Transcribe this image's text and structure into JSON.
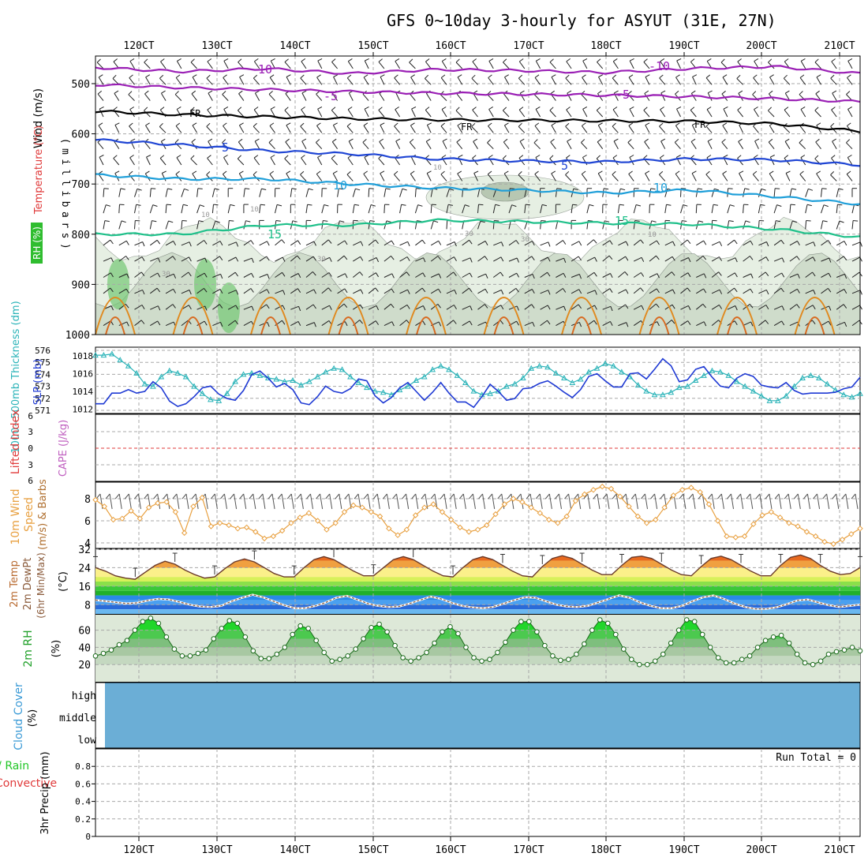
{
  "chart_data": [
    {
      "type": "meteogram-sounding",
      "title": "GFS 0~10day 3-hourly for ASYUT (31E, 27N)",
      "time_ticks": [
        "120CT",
        "130CT",
        "140CT",
        "150CT",
        "160CT",
        "170CT",
        "180CT",
        "190CT",
        "200CT",
        "210CT"
      ],
      "pressure_ticks": [
        500,
        600,
        700,
        800,
        900,
        1000
      ],
      "pressure_unit": "(millibars)",
      "ylabels": {
        "wind": "Wind (m/s)",
        "temperature": "Temperature (°C)",
        "rh": "RH (%)"
      },
      "contour_labels": {
        "m10a": "-10",
        "m10b": "-10",
        "m5a": "-5",
        "m5b": "-5",
        "fra": "FR",
        "frb": "FR",
        "frc": "FR",
        "p5a": "5",
        "p5b": "5",
        "p10a": "10",
        "p10b": "10",
        "p15a": "15",
        "p15b": "15",
        "rh10a": "10",
        "rh10b": "10",
        "rh10c": "10",
        "rh10d": "10",
        "rh30a": "30",
        "rh30b": "30",
        "rh30c": "30",
        "rh30d": "30"
      },
      "isotherm_levels": [
        {
          "label": "-10",
          "p": [
            468,
            476,
            470,
            480,
            472,
            474,
            478,
            470,
            466,
            480
          ]
        },
        {
          "label": "-5",
          "p": [
            502,
            508,
            512,
            516,
            519,
            521,
            523,
            526,
            530,
            536
          ]
        },
        {
          "label": "FR",
          "p": [
            555,
            562,
            566,
            570,
            572,
            573,
            574,
            575,
            580,
            595
          ]
        },
        {
          "label": "5",
          "p": [
            612,
            622,
            634,
            640,
            650,
            654,
            656,
            650,
            652,
            662
          ]
        },
        {
          "label": "10",
          "p": [
            682,
            690,
            690,
            700,
            708,
            712,
            718,
            712,
            725,
            740
          ]
        },
        {
          "label": "15",
          "p": [
            800,
            800,
            782,
            782,
            772,
            775,
            778,
            780,
            790,
            806
          ]
        }
      ]
    },
    {
      "type": "line",
      "ylabels": {
        "thickness": "1000~500mb Thickness (dm)",
        "slp": "SLP (mb)"
      },
      "thickness_ylim": [
        571,
        576
      ],
      "thickness_ticks": [
        576,
        575,
        574,
        573,
        572,
        571
      ],
      "slp_ylim": [
        1011.5,
        1019
      ],
      "slp_ticks": [
        1018,
        1016,
        1014,
        1012
      ],
      "series": [
        {
          "name": "Thickness",
          "unit": "dm",
          "values": [
            575.6,
            575.6,
            575.7,
            575.2,
            574.7,
            574.1,
            573.2,
            573.0,
            573.8,
            574.3,
            574.1,
            573.8,
            573.0,
            572.4,
            571.9,
            571.8,
            572.4,
            573.4,
            574.0,
            574.1,
            573.9,
            573.7,
            573.6,
            573.4,
            573.5,
            573.1,
            573.4,
            573.8,
            574.2,
            574.5,
            574.4,
            573.8,
            573.3,
            572.9,
            572.6,
            572.5,
            572.3,
            572.7,
            573.0,
            573.5,
            573.8,
            574.4,
            574.7,
            574.4,
            573.9,
            573.3,
            572.6,
            572.3,
            572.4,
            572.6,
            573.0,
            573.2,
            573.7,
            574.5,
            574.7,
            574.6,
            574.1,
            573.7,
            573.3,
            573.6,
            574.2,
            574.5,
            574.9,
            574.7,
            574.2,
            573.8,
            573.1,
            572.6,
            572.3,
            572.3,
            572.5,
            572.9,
            573.0,
            573.5,
            573.9,
            574.3,
            574.2,
            573.9,
            573.4,
            573.0,
            572.6,
            572.2,
            571.8,
            571.8,
            572.2,
            573.0,
            573.7,
            573.9,
            573.7,
            573.2,
            572.7,
            572.3,
            572.1,
            572.4
          ]
        },
        {
          "name": "SLP",
          "unit": "mb",
          "values": [
            1012.6,
            1012.6,
            1013.8,
            1013.8,
            1014.2,
            1013.8,
            1014.0,
            1015.1,
            1014.4,
            1012.9,
            1012.3,
            1012.6,
            1013.4,
            1014.4,
            1014.6,
            1013.7,
            1013.2,
            1013.0,
            1014.1,
            1015.9,
            1016.3,
            1015.5,
            1014.5,
            1014.9,
            1014.2,
            1012.7,
            1012.5,
            1013.4,
            1014.6,
            1014.0,
            1013.8,
            1014.3,
            1015.4,
            1015.2,
            1013.5,
            1012.7,
            1013.3,
            1014.4,
            1015.0,
            1014.0,
            1013.0,
            1013.9,
            1015.0,
            1013.8,
            1012.8,
            1012.8,
            1012.2,
            1013.4,
            1014.8,
            1014.0,
            1013.0,
            1013.2,
            1014.3,
            1014.4,
            1014.9,
            1015.2,
            1014.6,
            1013.9,
            1013.3,
            1014.2,
            1015.7,
            1016.0,
            1015.2,
            1014.5,
            1014.5,
            1016.0,
            1016.1,
            1015.4,
            1016.5,
            1017.7,
            1016.9,
            1015.1,
            1015.3,
            1016.5,
            1016.8,
            1015.6,
            1014.6,
            1014.4,
            1015.5,
            1016.0,
            1015.7,
            1014.7,
            1014.5,
            1014.4,
            1015.0,
            1014.1,
            1013.7,
            1013.8,
            1013.8,
            1013.8,
            1013.9,
            1014.3,
            1014.5,
            1015.6
          ]
        }
      ]
    },
    {
      "type": "line",
      "ylabels": {
        "li": "Lifted Index",
        "cape": "CAPE (J/kg)"
      },
      "ylim": [
        6,
        -6
      ],
      "ticks": [
        "6",
        "3",
        "0",
        "3",
        "6"
      ],
      "values": [],
      "zero_line": 0
    },
    {
      "type": "line",
      "ylabels": {
        "main": "10m Wind",
        "speed": "Speed",
        "barbs": "(m/s) & Barbs"
      },
      "ylim": [
        3.5,
        9.5
      ],
      "ticks": [
        8,
        6,
        4
      ],
      "series": [
        {
          "name": "10m wind speed",
          "values": [
            7.9,
            7.3,
            6.1,
            6.2,
            6.9,
            6.2,
            7.2,
            7.6,
            7.7,
            6.8,
            4.9,
            7.3,
            8.1,
            5.5,
            5.8,
            5.6,
            5.3,
            5.4,
            5.0,
            4.4,
            4.6,
            5.1,
            5.8,
            6.3,
            6.7,
            6.0,
            5.2,
            5.8,
            6.8,
            7.4,
            7.2,
            6.8,
            6.4,
            5.3,
            4.7,
            5.2,
            6.5,
            7.2,
            7.5,
            6.8,
            6.1,
            5.4,
            5.0,
            5.2,
            5.6,
            6.6,
            7.5,
            8.0,
            7.7,
            7.2,
            6.7,
            6.1,
            5.8,
            6.4,
            7.8,
            8.4,
            8.8,
            9.1,
            8.9,
            8.2,
            7.3,
            6.4,
            5.8,
            6.1,
            7.2,
            8.3,
            8.8,
            9.0,
            8.6,
            7.5,
            6.0,
            4.6,
            4.5,
            4.6,
            5.7,
            6.5,
            6.8,
            6.3,
            5.8,
            5.5,
            5.0,
            4.6,
            4.1,
            3.9,
            4.3,
            4.8,
            5.3
          ]
        }
      ]
    },
    {
      "type": "line",
      "ylabels": {
        "t": "2m Temp",
        "td": "2m DewPt",
        "mm": "(6hr Min/Max)",
        "unit": "(°C)"
      },
      "ylim": [
        4,
        32
      ],
      "ticks": [
        32,
        24,
        16,
        8
      ],
      "series": [
        {
          "name": "2m Temp",
          "values": [
            24.0,
            22.5,
            20.5,
            19.5,
            19.0,
            22.0,
            25.0,
            26.8,
            25.5,
            23.0,
            21.0,
            19.5,
            20.0,
            23.5,
            26.5,
            27.8,
            26.5,
            24.0,
            21.5,
            20.0,
            20.0,
            24.0,
            27.5,
            28.8,
            27.5,
            25.0,
            22.5,
            20.5,
            20.5,
            24.0,
            27.5,
            28.8,
            27.5,
            25.0,
            22.5,
            20.5,
            20.0,
            24.0,
            27.5,
            28.8,
            27.5,
            25.0,
            22.5,
            20.5,
            20.0,
            24.5,
            28.0,
            29.2,
            28.0,
            25.5,
            23.0,
            21.0,
            21.0,
            25.0,
            28.5,
            29.0,
            28.0,
            25.5,
            23.0,
            21.0,
            20.5,
            24.5,
            28.0,
            29.0,
            27.5,
            25.0,
            22.5,
            20.5,
            20.5,
            25.0,
            28.5,
            29.5,
            28.0,
            25.0,
            22.5,
            21.0,
            21.5,
            24.0
          ]
        },
        {
          "name": "2m DewPt",
          "values": [
            10.0,
            9.5,
            9.0,
            8.5,
            8.8,
            9.8,
            10.5,
            10.2,
            9.2,
            8.0,
            7.2,
            7.0,
            7.5,
            9.5,
            11.0,
            12.3,
            11.2,
            9.5,
            7.8,
            6.5,
            6.5,
            7.5,
            9.0,
            11.0,
            11.8,
            10.2,
            8.5,
            7.5,
            7.0,
            7.2,
            8.5,
            10.0,
            11.5,
            10.5,
            8.8,
            7.5,
            6.8,
            6.5,
            7.0,
            8.5,
            10.0,
            11.2,
            11.0,
            9.5,
            8.0,
            7.2,
            7.0,
            7.5,
            9.0,
            10.5,
            12.0,
            11.0,
            9.0,
            7.5,
            6.5,
            6.5,
            7.5,
            9.5,
            11.2,
            12.0,
            10.5,
            8.5,
            7.0,
            6.2,
            6.2,
            6.8,
            8.2,
            9.8,
            10.2,
            9.0,
            7.8,
            7.0,
            7.5,
            8.0
          ]
        }
      ]
    },
    {
      "type": "area",
      "ylabels": {
        "main": "2m RH",
        "unit": "(%)"
      },
      "ylim": [
        0,
        78
      ],
      "ticks": [
        60,
        40,
        20
      ],
      "series": [
        {
          "name": "2m RH",
          "values": [
            30,
            33,
            37,
            43,
            48,
            60,
            70,
            74,
            68,
            52,
            38,
            30,
            30,
            33,
            37,
            50,
            62,
            71,
            68,
            52,
            36,
            27,
            27,
            32,
            40,
            55,
            65,
            62,
            48,
            34,
            24,
            26,
            30,
            38,
            50,
            63,
            67,
            58,
            42,
            28,
            24,
            28,
            34,
            45,
            58,
            64,
            56,
            40,
            28,
            24,
            26,
            34,
            46,
            60,
            70,
            70,
            58,
            42,
            30,
            25,
            26,
            32,
            44,
            60,
            72,
            68,
            55,
            38,
            26,
            20,
            20,
            24,
            32,
            45,
            60,
            72,
            70,
            55,
            40,
            28,
            22,
            22,
            26,
            30,
            40,
            48,
            52,
            54,
            45,
            32,
            22,
            20,
            24,
            32,
            35,
            37,
            40,
            36
          ]
        }
      ]
    },
    {
      "type": "heatmap",
      "ylabels": {
        "main": "Cloud Cover",
        "unit": "(%)"
      },
      "rows": [
        "high",
        "middle",
        "low"
      ],
      "values": [
        0,
        0,
        0
      ],
      "color": "#6baed6"
    },
    {
      "type": "bar",
      "ylabels": {
        "total": "Total / Rain",
        "conv": "Convective",
        "main": "3hr Precip (mm)"
      },
      "ylim": [
        0,
        1
      ],
      "ticks": [
        "0.8",
        "0.6",
        "0.4",
        "0.2",
        "0"
      ],
      "values": [],
      "run_total_text": "Run Total = 0"
    }
  ],
  "colors": {
    "isotherm_neg10": "#9a1fb5",
    "isotherm_neg5": "#9a1fb5",
    "isotherm_fr": "#000000",
    "isotherm_5": "#1f45d4",
    "isotherm_10": "#1f9fd9",
    "isotherm_15": "#1fc08a",
    "warm": "#e08a20",
    "thickness": "#2ab3b8",
    "slp": "#1f3ad4",
    "zero_line": "#e03a3a",
    "wind_line": "#e8a040",
    "dewpt": "#8a5a3a",
    "rh_fill": "#21c627",
    "cloud": "#6baed6"
  }
}
